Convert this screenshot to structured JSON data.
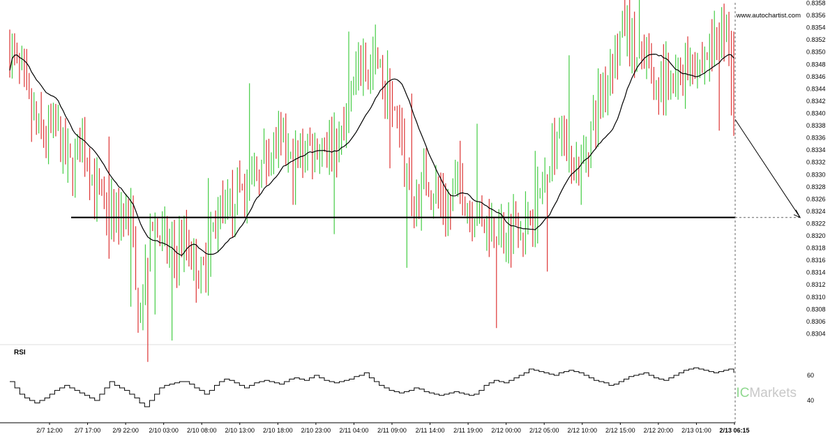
{
  "chart_data": {
    "type": "candlestick",
    "watermark_url": "www.autochartist.com",
    "brand": {
      "prefix": "IC",
      "name": "Markets"
    },
    "price_axis": {
      "min": 0.8302,
      "max": 0.8358,
      "ticks": [
        "0.8358",
        "0.8356",
        "0.8354",
        "0.8352",
        "0.8350",
        "0.8348",
        "0.8346",
        "0.8344",
        "0.8342",
        "0.8340",
        "0.8338",
        "0.8336",
        "0.8334",
        "0.8332",
        "0.8330",
        "0.8328",
        "0.8326",
        "0.8324",
        "0.8322",
        "0.8320",
        "0.8318",
        "0.8316",
        "0.8314",
        "0.8312",
        "0.8310",
        "0.8308",
        "0.8306",
        "0.8304"
      ]
    },
    "time_axis": {
      "labels": [
        "2/7 12:00",
        "2/7 17:00",
        "2/9 22:00",
        "2/10 03:00",
        "2/10 08:00",
        "2/10 13:00",
        "2/10 18:00",
        "2/10 23:00",
        "2/11 04:00",
        "2/11 09:00",
        "2/11 14:00",
        "2/11 19:00",
        "2/12 00:00",
        "2/12 05:00",
        "2/12 10:00",
        "2/12 15:00",
        "2/12 20:00",
        "2/13 01:00",
        "2/13 06:15"
      ],
      "highlighted_label": "2/13 06:15"
    },
    "price_path": [
      0.835,
      0.8349,
      0.8346,
      0.8344,
      0.834,
      0.8338,
      0.8337,
      0.8336,
      0.8338,
      0.8337,
      0.8335,
      0.8332,
      0.8331,
      0.8333,
      0.8335,
      0.8333,
      0.833,
      0.8327,
      0.8325,
      0.8321,
      0.8324,
      0.8322,
      0.8325,
      0.8324,
      0.832,
      0.8309,
      0.8312,
      0.8318,
      0.8321,
      0.832,
      0.8319,
      0.8318,
      0.8317,
      0.8318,
      0.8319,
      0.8318,
      0.8316,
      0.8313,
      0.8315,
      0.832,
      0.8322,
      0.8324,
      0.8323,
      0.8325,
      0.8327,
      0.8328,
      0.8327,
      0.8329,
      0.833,
      0.8331,
      0.8333,
      0.8334,
      0.8335,
      0.8334,
      0.8333,
      0.8331,
      0.8332,
      0.8334,
      0.8335,
      0.8334,
      0.8335,
      0.8336,
      0.8335,
      0.8336,
      0.8335,
      0.8336,
      0.834,
      0.8344,
      0.8347,
      0.8349,
      0.8346,
      0.8349,
      0.8347,
      0.8343,
      0.8346,
      0.8339,
      0.8335,
      0.833,
      0.8327,
      0.8325,
      0.8328,
      0.833,
      0.8328,
      0.8327,
      0.8326,
      0.8325,
      0.8324,
      0.833,
      0.8328,
      0.8325,
      0.8324,
      0.8325,
      0.8324,
      0.8322,
      0.8321,
      0.8322,
      0.8321,
      0.8321,
      0.8322,
      0.8323,
      0.8322,
      0.8322,
      0.8324,
      0.8326,
      0.8329,
      0.8333,
      0.8336,
      0.8338,
      0.8336,
      0.8334,
      0.8332,
      0.833,
      0.8333,
      0.8337,
      0.834,
      0.8343,
      0.8345,
      0.8348,
      0.835,
      0.8353,
      0.8355,
      0.8351,
      0.8349,
      0.8348,
      0.8347,
      0.8346,
      0.8344,
      0.8346,
      0.8345,
      0.8344,
      0.8345,
      0.8347,
      0.8348,
      0.8349,
      0.8348,
      0.8349,
      0.835,
      0.8351,
      0.8352,
      0.8353,
      0.8352,
      0.8338
    ],
    "moving_average": {
      "name": "",
      "period": 20
    },
    "support_level": 0.8323,
    "projection": {
      "from": 0.8339,
      "to": 0.8323
    },
    "rsi": {
      "label": "RSI",
      "ticks": [
        60,
        40
      ],
      "range": [
        30,
        70
      ],
      "values": [
        55,
        50,
        45,
        42,
        40,
        38,
        40,
        42,
        45,
        48,
        50,
        52,
        50,
        48,
        46,
        44,
        42,
        40,
        45,
        50,
        55,
        52,
        50,
        48,
        45,
        42,
        38,
        35,
        40,
        45,
        50,
        52,
        53,
        54,
        55,
        55,
        53,
        50,
        48,
        45,
        48,
        52,
        55,
        57,
        56,
        54,
        52,
        50,
        52,
        54,
        55,
        56,
        55,
        54,
        53,
        55,
        57,
        58,
        57,
        56,
        58,
        60,
        58,
        56,
        55,
        54,
        55,
        56,
        57,
        59,
        60,
        62,
        58,
        55,
        52,
        50,
        48,
        47,
        46,
        47,
        48,
        50,
        49,
        47,
        46,
        45,
        44,
        45,
        46,
        47,
        46,
        45,
        44,
        45,
        48,
        52,
        54,
        56,
        55,
        54,
        56,
        58,
        60,
        62,
        65,
        64,
        63,
        62,
        61,
        60,
        62,
        63,
        64,
        63,
        62,
        60,
        58,
        56,
        55,
        54,
        52,
        53,
        55,
        57,
        59,
        60,
        61,
        62,
        60,
        58,
        57,
        56,
        58,
        60,
        62,
        64,
        65,
        66,
        65,
        64,
        63,
        62,
        63,
        64,
        65,
        62
      ]
    }
  }
}
